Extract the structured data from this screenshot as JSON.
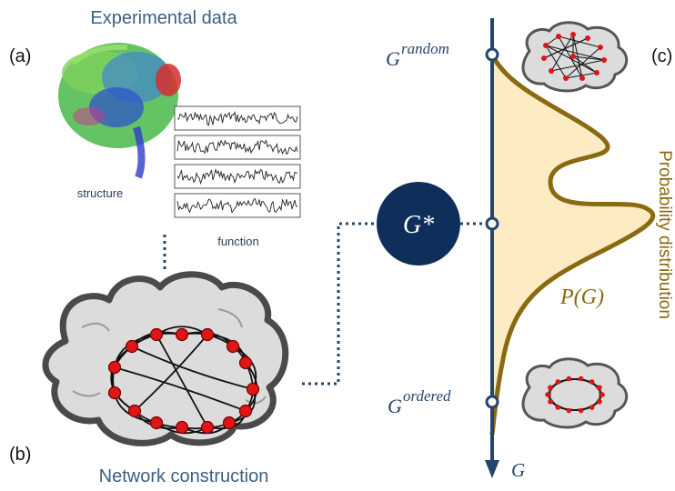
{
  "panel_a": {
    "letter": "(a)",
    "title": "Experimental data",
    "structure_label": "structure",
    "function_label": "function"
  },
  "panel_b": {
    "letter": "(b)",
    "title": "Network construction"
  },
  "panel_c": {
    "letter": "(c)",
    "axis_label": "G",
    "g_random_base": "G",
    "g_random_sup": "random",
    "g_ordered_base": "G",
    "g_ordered_sup": "ordered",
    "g_star": "G*",
    "p_label": "P(G)",
    "side_label": "Probability distribution"
  },
  "colors": {
    "title_blue": "#3d5f82",
    "axis_blue": "#24466e",
    "gstar_fill": "#0f2e5a",
    "curve": "#8a6a10",
    "curve_fill": "#fdebc4",
    "node_red": "#e01515",
    "brain_fill": "#dcdcdc",
    "brain_stroke": "#4a4a4a"
  }
}
